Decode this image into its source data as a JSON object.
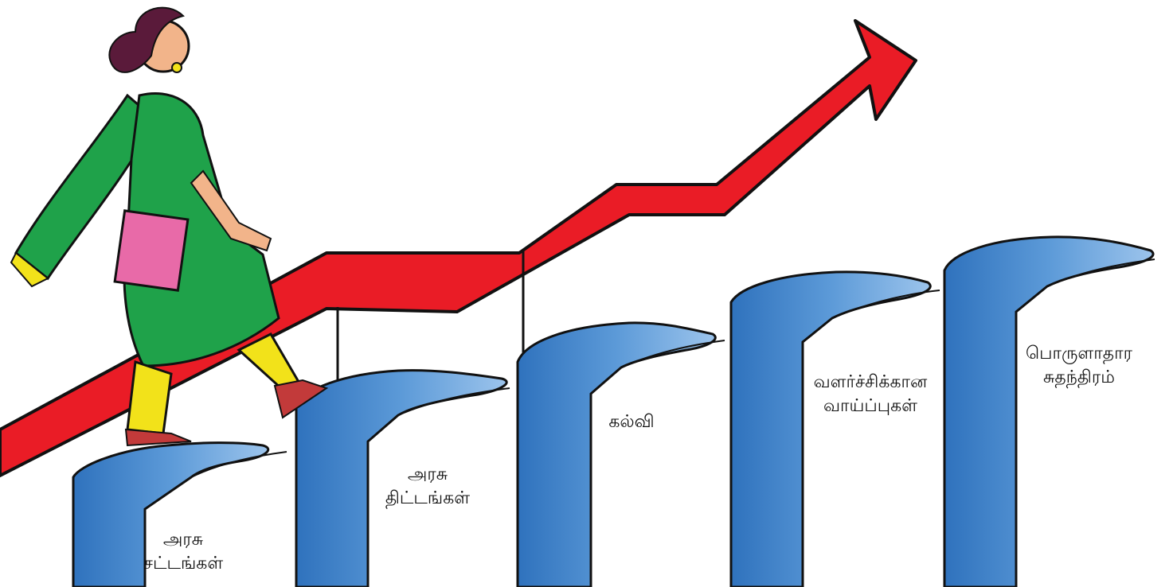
{
  "steps": [
    {
      "line1": "அரசு",
      "line2": "சட்டங்கள்"
    },
    {
      "line1": "அரசு",
      "line2": "திட்டங்கள்"
    },
    {
      "line1": "கல்வி",
      "line2": ""
    },
    {
      "line1": "வளர்ச்சிக்கான",
      "line2": "வாய்ப்புகள்"
    },
    {
      "line1": "பொருளாதார",
      "line2": "சுதந்திரம்"
    }
  ],
  "colors": {
    "arrow": "#ea1c26",
    "hand": "#4a8bd0",
    "hand_light": "#8ab8e6",
    "dress": "#1fa24a",
    "pants": "#f2e21a",
    "folder": "#e86aa8",
    "skin": "#f2b48a",
    "hair": "#5a1a3a"
  }
}
